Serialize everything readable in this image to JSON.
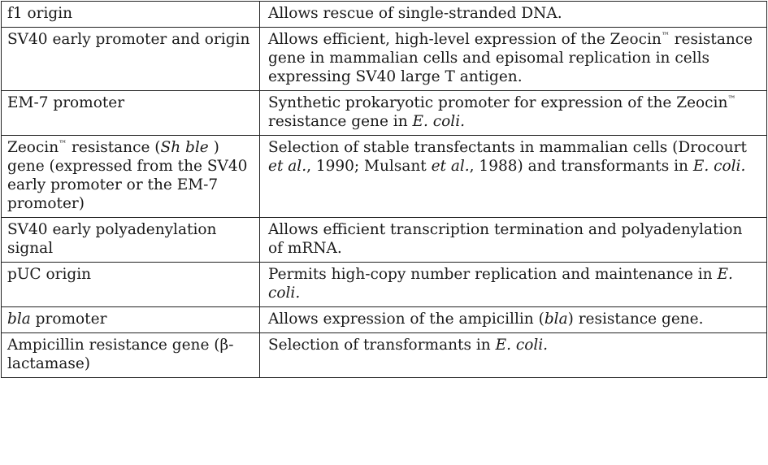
{
  "table": {
    "rows": [
      {
        "feature": [
          "f1 origin"
        ],
        "benefit": [
          "Allows rescue of single-stranded DNA."
        ]
      },
      {
        "feature": [
          "SV40 early promoter and origin"
        ],
        "benefit": [
          "Allows efficient, high-level expression of the Zeocin",
          "™",
          " resistance gene in mammalian cells and episomal replication in cells expressing SV40 large T antigen."
        ]
      },
      {
        "feature": [
          "EM-7 promoter"
        ],
        "benefit": [
          "Synthetic prokaryotic promoter for expression of the Zeocin",
          "™",
          " resistance gene in ",
          "E. coli."
        ]
      },
      {
        "feature": [
          "Zeocin",
          "™",
          " resistance (",
          "Sh ble",
          " ) gene (expressed from the SV40 early promoter or the EM-7 promoter)"
        ],
        "benefit": [
          "Selection of stable transfectants in mammalian cells (Drocourt ",
          "et al.",
          ", 1990; Mulsant ",
          "et al.",
          ", 1988) and transformants in ",
          "E. coli."
        ]
      },
      {
        "feature": [
          "SV40 early polyadenylation signal"
        ],
        "benefit": [
          "Allows efficient transcription termination and polyadenylation of mRNA."
        ]
      },
      {
        "feature": [
          "pUC origin"
        ],
        "benefit": [
          "Permits high-copy number replication and maintenance in ",
          "E. coli."
        ]
      },
      {
        "feature": [
          "bla",
          " promoter"
        ],
        "benefit": [
          "Allows expression of the ampicillin (",
          "bla",
          ") resistance gene."
        ]
      },
      {
        "feature": [
          "Ampicillin resistance gene (β-lactamase)"
        ],
        "benefit": [
          "Selection of transformants in ",
          "E. coli."
        ]
      }
    ]
  }
}
